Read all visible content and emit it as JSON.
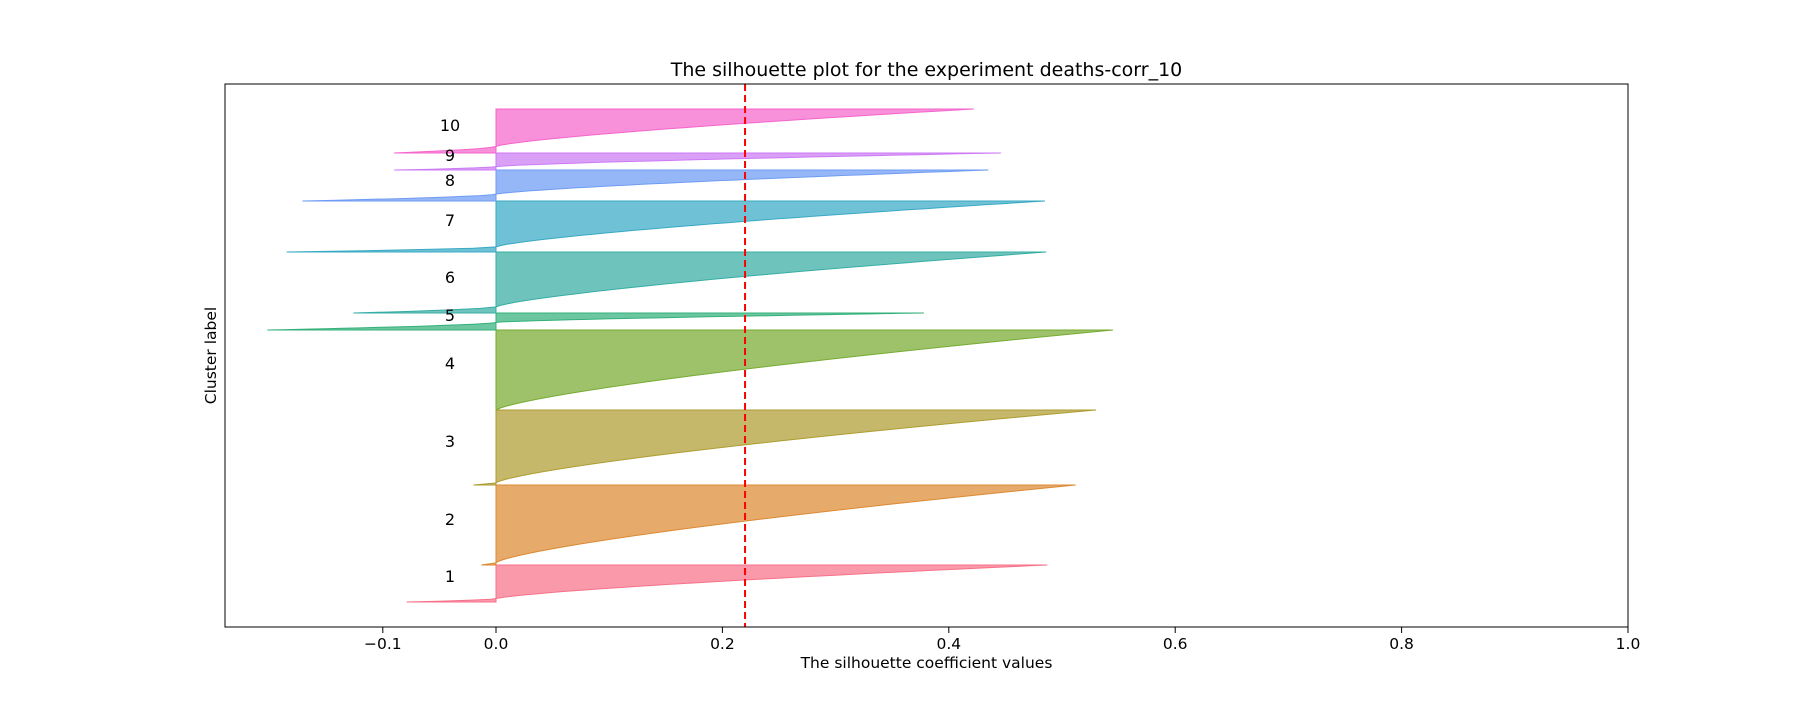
{
  "chart_data": {
    "type": "area",
    "title": "The silhouette plot for the experiment deaths-corr_10",
    "xlabel": "The silhouette coefficient values",
    "ylabel": "Cluster label",
    "xlim": [
      -0.1,
      1.0
    ],
    "xticks": [
      -0.1,
      0.0,
      0.2,
      0.4,
      0.6,
      0.8,
      1.0
    ],
    "xtick_labels": [
      "−0.1",
      "0.0",
      "0.2",
      "0.4",
      "0.6",
      "0.8",
      "1.0"
    ],
    "yticks": [],
    "grid": false,
    "legend": "none",
    "average_silhouette": 0.22,
    "average_line_color": "#ff0000",
    "clusters": [
      {
        "label": "1",
        "color": "#f77189",
        "max": 0.487,
        "min": -0.079,
        "neg_frac": 0.09
      },
      {
        "label": "2",
        "color": "#dc8932",
        "max": 0.512,
        "min": -0.013,
        "neg_frac": 0.03
      },
      {
        "label": "3",
        "color": "#ae9d31",
        "max": 0.53,
        "min": -0.02,
        "neg_frac": 0.03
      },
      {
        "label": "4",
        "color": "#77ab31",
        "max": 0.545,
        "min": 0.0,
        "neg_frac": 0.0
      },
      {
        "label": "5",
        "color": "#33b07a",
        "max": 0.378,
        "min": -0.202,
        "neg_frac": 0.45
      },
      {
        "label": "6",
        "color": "#36ada4",
        "max": 0.486,
        "min": -0.126,
        "neg_frac": 0.1
      },
      {
        "label": "7",
        "color": "#38a9c5",
        "max": 0.485,
        "min": -0.185,
        "neg_frac": 0.1
      },
      {
        "label": "8",
        "color": "#6e9bf4",
        "max": 0.435,
        "min": -0.171,
        "neg_frac": 0.22
      },
      {
        "label": "9",
        "color": "#cc7af4",
        "max": 0.446,
        "min": -0.09,
        "neg_frac": 0.2
      },
      {
        "label": "10",
        "color": "#f565cc",
        "max": 0.422,
        "min": -0.09,
        "neg_frac": 0.15
      }
    ]
  }
}
